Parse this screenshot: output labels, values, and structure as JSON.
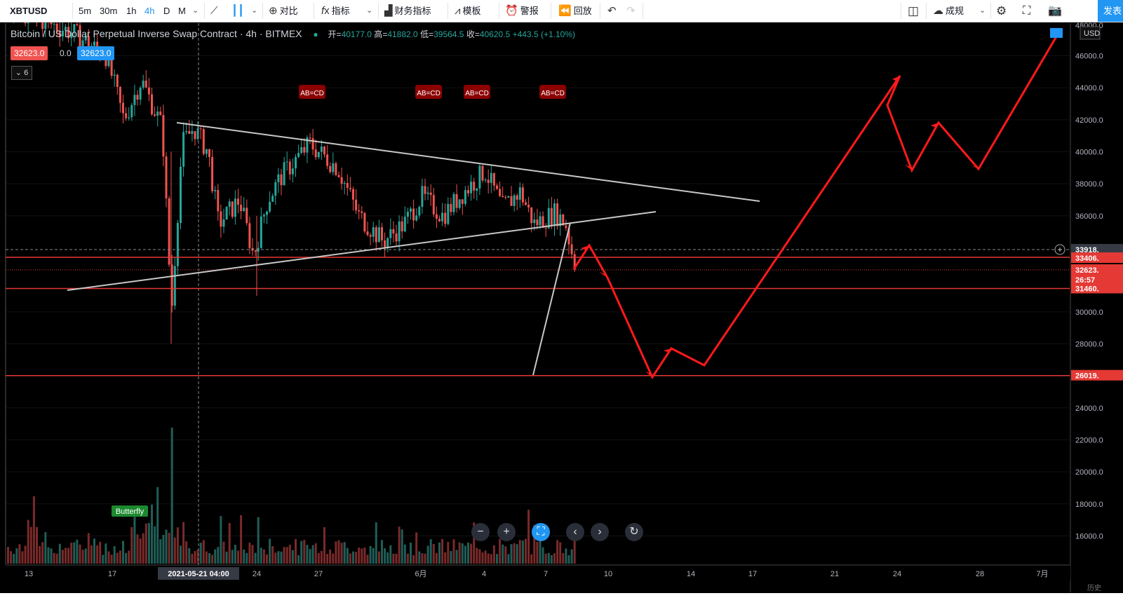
{
  "toolbar": {
    "symbol": "XBTUSD",
    "intervals": [
      "5m",
      "30m",
      "1h",
      "4h",
      "D",
      "M"
    ],
    "active_interval": "4h",
    "compare": "对比",
    "indicators": "指标",
    "financials": "财务指标",
    "templates": "模板",
    "alert": "警报",
    "replay": "回放",
    "layout_name": "成规",
    "publish": "发表"
  },
  "legend": {
    "title": "Bitcoin / US Dollar Perpetual Inverse Swap Contract · 4h · BITMEX",
    "open_label": "开",
    "open": "40177.0",
    "high_label": "高",
    "high": "41882.0",
    "low_label": "低",
    "low": "39564.5",
    "close_label": "收",
    "close": "40620.5",
    "change": "+443.5 (+1.10%)"
  },
  "quote": {
    "bid": "32623.0",
    "spread": "0.0",
    "ask": "32623.0"
  },
  "collapse_count": "6",
  "patterns": [
    "AB=CD",
    "AB=CD",
    "AB=CD",
    "AB=CD"
  ],
  "butterfly_label": "Butterfly",
  "axis": {
    "currency": "USD",
    "price_ticks": [
      "46000.0",
      "44000.0",
      "42000.0",
      "40000.0",
      "38000.0",
      "36000.0",
      "30000.0",
      "28000.0",
      "24000.0",
      "22000.0",
      "20000.0",
      "18000.0",
      "16000.0"
    ],
    "time_ticks": [
      "13",
      "17",
      "24",
      "27",
      "6月",
      "4",
      "7",
      "10",
      "14",
      "17",
      "21",
      "24",
      "28",
      "7月"
    ],
    "crosshair_time": "2021-05-21   04:00",
    "crosshair_price": "33918.",
    "price_labels": {
      "level_33400": "33406.",
      "last_price": "32623.",
      "countdown": "26:57",
      "level_31460": "31460.",
      "level_26019": "26019."
    },
    "partial_top": "48000.0",
    "partial_bottom": "历史"
  },
  "chart_data": {
    "type": "candlestick",
    "symbol": "XBTUSD",
    "exchange": "BITMEX",
    "interval": "4h",
    "y_range": [
      14500,
      48500
    ],
    "last_price": 32623.0,
    "horizontal_levels": [
      33406,
      31460,
      26019
    ],
    "crosshair_price": 33918,
    "projected_path_prices": [
      32500,
      33900,
      31400,
      26019,
      27800,
      26400,
      45000,
      41000,
      38900,
      42000,
      38900,
      48000
    ],
    "volume_peak_date": "2021-05-19"
  },
  "colors": {
    "up": "#26a69a",
    "down": "#ef5350",
    "level_line": "#e53935",
    "arrow": "#ff1a1a",
    "trendline": "#c8c8c8",
    "accent": "#2196f3",
    "pattern_label_bg": "#8b0000"
  }
}
